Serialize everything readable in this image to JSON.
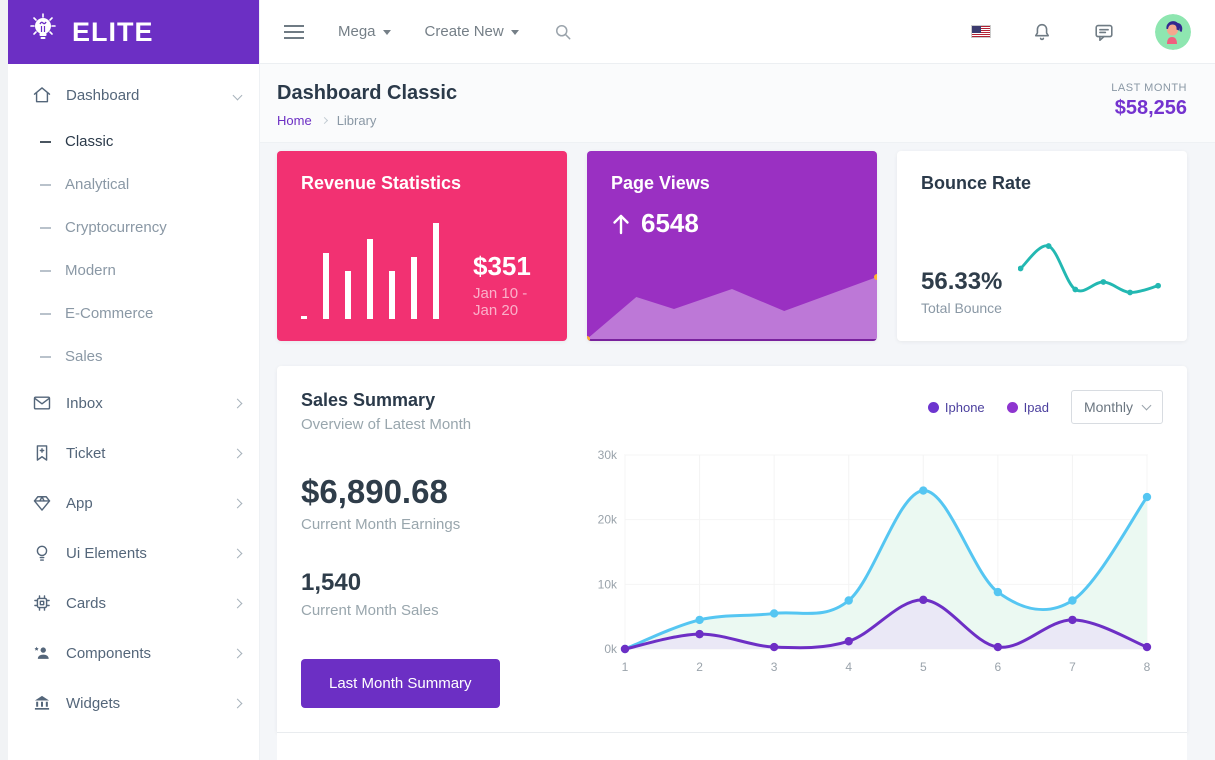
{
  "brand": {
    "name": "ELITE",
    "logo_icon": "bulb-icon",
    "color": "#6c2fc4"
  },
  "navbar": {
    "menu": [
      {
        "label": "Mega"
      },
      {
        "label": "Create New"
      }
    ],
    "icons": [
      "hamburger-icon",
      "search-icon",
      "us-flag-icon",
      "bell-icon",
      "chat-icon",
      "avatar"
    ]
  },
  "sidebar": {
    "items": [
      {
        "label": "Dashboard",
        "icon": "home-icon",
        "state": "expanded"
      },
      {
        "label": "Inbox",
        "icon": "envelope-icon"
      },
      {
        "label": "Ticket",
        "icon": "ticket-icon"
      },
      {
        "label": "App",
        "icon": "diamond-icon"
      },
      {
        "label": "Ui Elements",
        "icon": "bulb-icon"
      },
      {
        "label": "Cards",
        "icon": "chip-icon"
      },
      {
        "label": "Components",
        "icon": "user-star-icon"
      },
      {
        "label": "Widgets",
        "icon": "bank-icon"
      }
    ],
    "sub_items": [
      {
        "label": "Classic",
        "active": true
      },
      {
        "label": "Analytical",
        "active": false
      },
      {
        "label": "Cryptocurrency",
        "active": false
      },
      {
        "label": "Modern",
        "active": false
      },
      {
        "label": "E-Commerce",
        "active": false
      },
      {
        "label": "Sales",
        "active": false
      }
    ]
  },
  "page_header": {
    "title": "Dashboard Classic",
    "breadcrumb_home": "Home",
    "breadcrumb_current": "Library",
    "last_month_label": "LAST MONTH",
    "last_month_value": "$58,256"
  },
  "cards": {
    "revenue": {
      "title": "Revenue Statistics",
      "amount": "$351",
      "period": "Jan 10 - Jan 20",
      "color": "#f23172"
    },
    "page_views": {
      "title": "Page Views",
      "value": "6548",
      "trend": "up",
      "color": "#9a30c2"
    },
    "bounce": {
      "title": "Bounce Rate",
      "value": "56.33%",
      "caption": "Total Bounce",
      "color": "#23b8b2"
    }
  },
  "sales_summary": {
    "title": "Sales Summary",
    "subtitle": "Overview of Latest Month",
    "earnings": "$6,890.68",
    "earnings_caption": "Current Month Earnings",
    "sales": "1,540",
    "sales_caption": "Current Month Sales",
    "button_label": "Last Month Summary",
    "legend": [
      {
        "label": "Iphone",
        "color": "#6d35cf"
      },
      {
        "label": "Ipad",
        "color": "#8e35cf"
      }
    ],
    "filter": "Monthly"
  },
  "chart_data": [
    {
      "id": "revenue-bars",
      "type": "bar",
      "title": "Revenue Statistics sparkline",
      "values": [
        3,
        66,
        48,
        80,
        48,
        62,
        96
      ],
      "bar_color": "#ffffff",
      "background": "#f23172"
    },
    {
      "id": "pageviews-area",
      "type": "area",
      "title": "Page Views trend",
      "x": [
        0,
        17,
        30,
        50,
        68,
        100
      ],
      "values": [
        0,
        42,
        30,
        50,
        28,
        62
      ],
      "fill": "rgba(255,255,255,0.35)",
      "marker_color": "#ffb22b",
      "baseline_color": "rgba(60,10,90,0.35)"
    },
    {
      "id": "bounce-line",
      "type": "line",
      "title": "Bounce Rate trend",
      "x": [
        0,
        20,
        39,
        59,
        78,
        98
      ],
      "values": [
        52,
        82,
        24,
        34,
        20,
        29
      ],
      "color": "#23b8b2"
    },
    {
      "id": "sales-chart",
      "type": "line",
      "title": "Sales Summary",
      "categories": [
        "1",
        "2",
        "3",
        "4",
        "5",
        "6",
        "7",
        "8"
      ],
      "series": [
        {
          "name": "Iphone",
          "color": "#55c6f2",
          "fill": "#e9f8f1",
          "values": [
            0,
            4500,
            5500,
            7500,
            24500,
            8800,
            7500,
            23500
          ]
        },
        {
          "name": "Ipad",
          "color": "#6d2fc5",
          "fill": "#e9e6f6",
          "values": [
            0,
            2300,
            300,
            1200,
            7600,
            300,
            4500,
            300
          ]
        }
      ],
      "ylim": [
        0,
        30000
      ],
      "yticks": [
        {
          "v": 0,
          "label": "0k"
        },
        {
          "v": 10000,
          "label": "10k"
        },
        {
          "v": 20000,
          "label": "20k"
        },
        {
          "v": 30000,
          "label": "30k"
        }
      ],
      "grid": true,
      "legend_position": "top-right"
    }
  ]
}
